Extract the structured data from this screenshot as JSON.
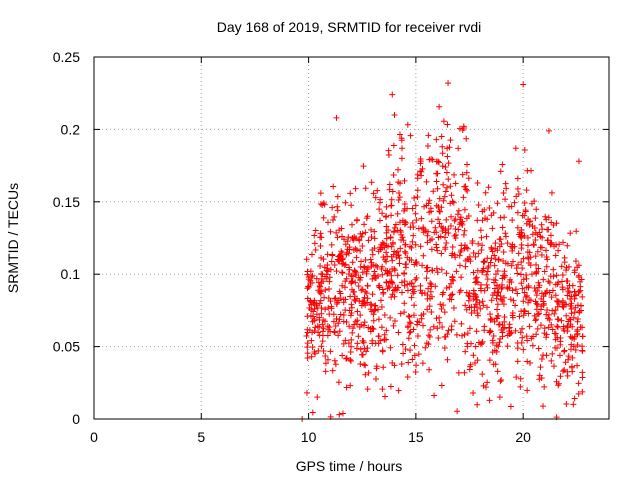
{
  "chart_data": {
    "type": "scatter",
    "title": "Day 168 of 2019, SRMTID for receiver rvdi",
    "xlabel": "GPS time / hours",
    "ylabel": "SRMTID / TECUs",
    "xlim": [
      0,
      24
    ],
    "ylim": [
      0,
      0.25
    ],
    "x_ticks": [
      0,
      5,
      10,
      15,
      20
    ],
    "x_tick_labels": [
      "0",
      "5",
      "10",
      "15",
      "20"
    ],
    "y_ticks": [
      0,
      0.05,
      0.1,
      0.15,
      0.2,
      0.25
    ],
    "y_tick_labels": [
      "0",
      "0.05",
      "0.1",
      "0.15",
      "0.2",
      "0.25"
    ],
    "grid": true,
    "marker": "+",
    "series": [
      {
        "name": "SRMTID",
        "color": "#ff0000",
        "x_range": [
          9.6,
          22.8
        ],
        "y_range": [
          0,
          0.232
        ],
        "notable_points": [
          {
            "x": 9.7,
            "y": 0.0
          },
          {
            "x": 13.9,
            "y": 0.224
          },
          {
            "x": 16.5,
            "y": 0.232
          },
          {
            "x": 20.0,
            "y": 0.231
          },
          {
            "x": 11.3,
            "y": 0.208
          },
          {
            "x": 21.2,
            "y": 0.199
          },
          {
            "x": 22.6,
            "y": 0.178
          }
        ]
      }
    ]
  }
}
